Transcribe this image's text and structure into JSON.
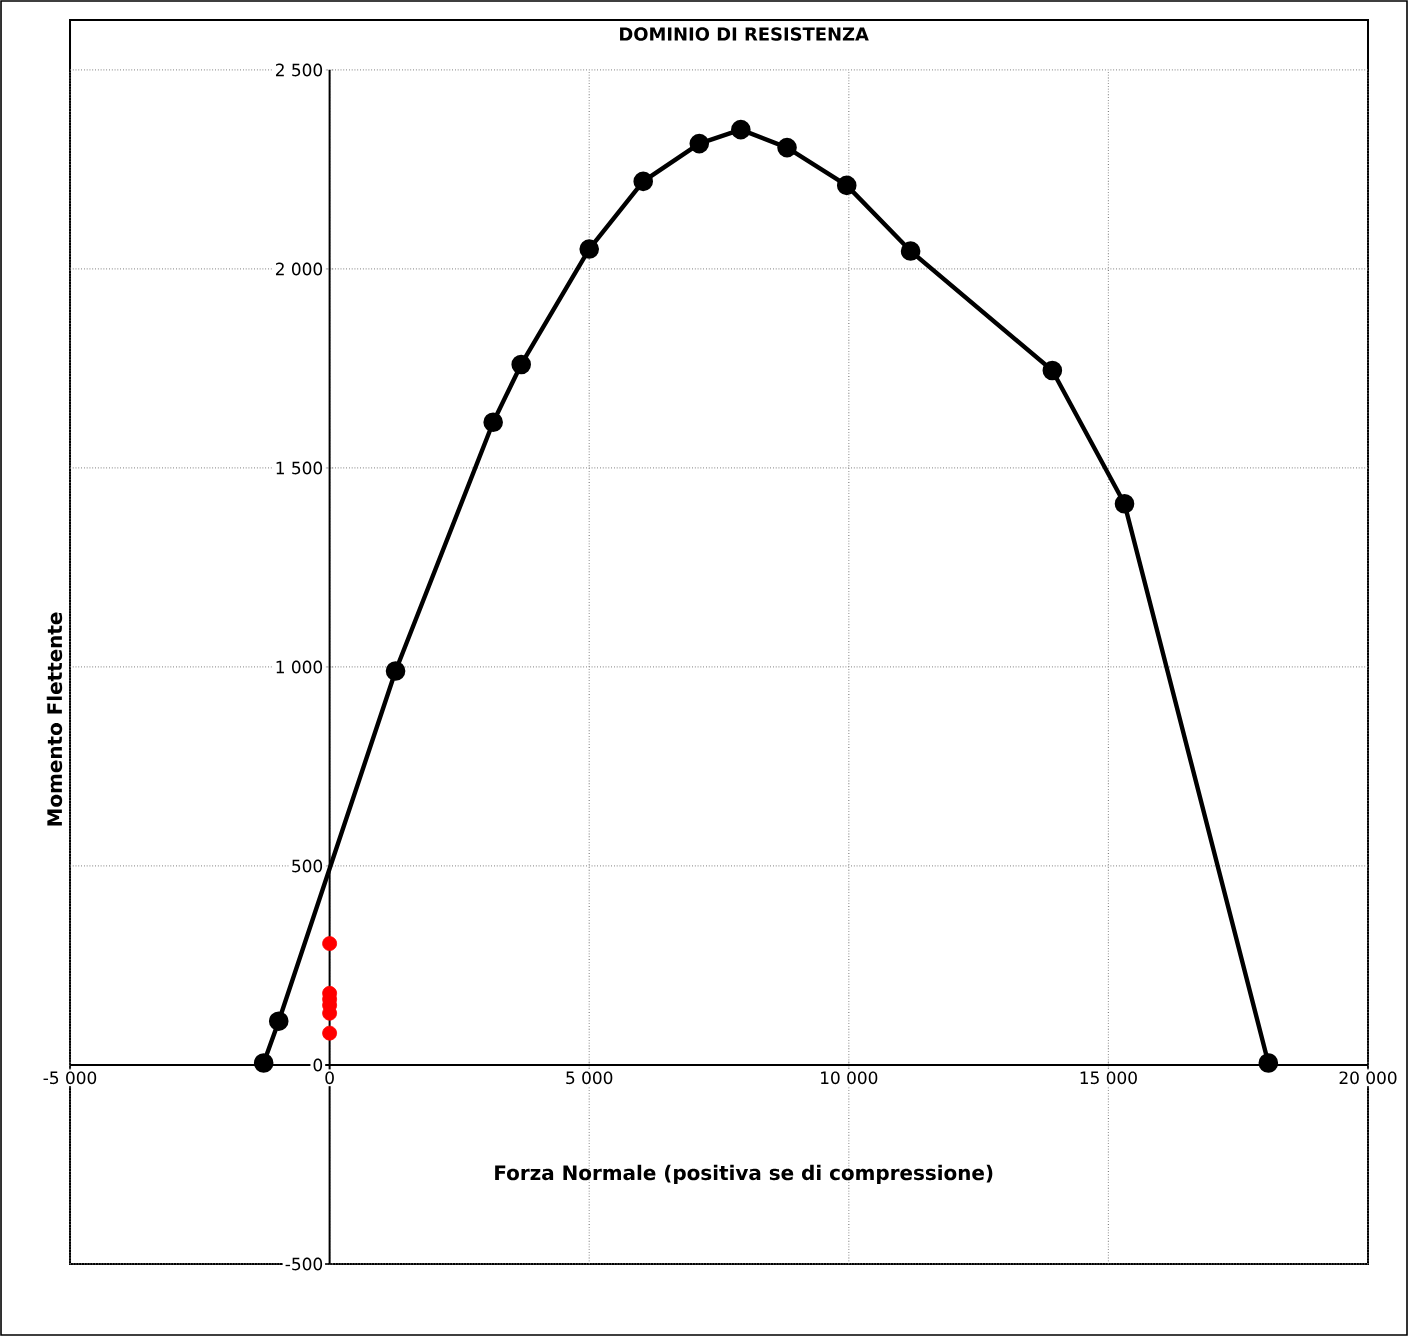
{
  "chart_data": {
    "type": "line",
    "title": "DOMINIO DI RESISTENZA",
    "xlabel": "Forza Normale (positiva se di compressione)",
    "ylabel": "Momento Flettente",
    "xlim": [
      -5000,
      20000
    ],
    "ylim": [
      -500,
      2500
    ],
    "xticks": [
      {
        "value": -5000,
        "label": "-5 000"
      },
      0,
      {
        "value": 5000,
        "label": "5 000"
      },
      {
        "value": 10000,
        "label": "10 000"
      },
      {
        "value": 15000,
        "label": "15 000"
      },
      {
        "value": 20000,
        "label": "20 000"
      }
    ],
    "yticks": [
      {
        "value": -500,
        "label": "-500"
      },
      0,
      500,
      {
        "value": 1000,
        "label": "1 000"
      },
      {
        "value": 1500,
        "label": "1 500"
      },
      {
        "value": 2000,
        "label": "2 000"
      },
      {
        "value": 2500,
        "label": "2 500"
      }
    ],
    "grid": true,
    "marker": "circle",
    "series": [
      {
        "color": "#000000",
        "x": [
          -1270,
          -980,
          1270,
          3150,
          3690,
          5000,
          6040,
          7120,
          7920,
          8810,
          9960,
          11190,
          13920,
          15310,
          18080
        ],
        "values": [
          5,
          110,
          990,
          1615,
          1760,
          2050,
          2220,
          2315,
          2350,
          2305,
          2210,
          2045,
          1745,
          1410,
          5
        ]
      },
      {
        "type": "scatter",
        "color": "#ff0000",
        "x": [
          0,
          0,
          0,
          0,
          0,
          0
        ],
        "values": [
          305,
          180,
          165,
          150,
          130,
          80
        ]
      }
    ]
  }
}
